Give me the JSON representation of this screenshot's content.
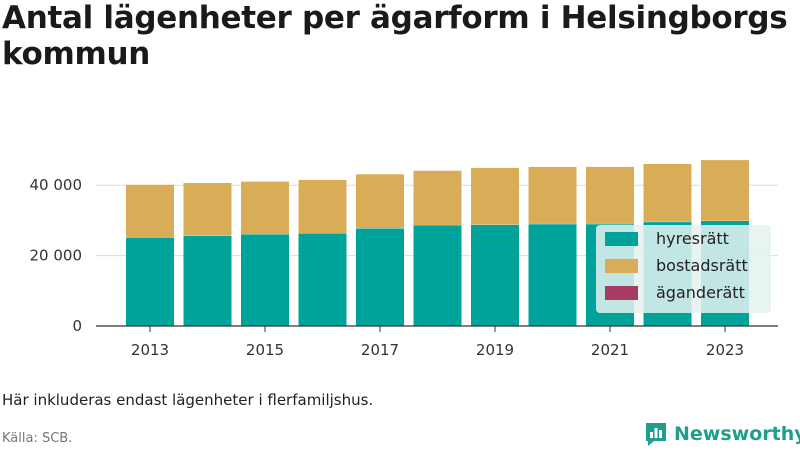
{
  "title": "Antal lägenheter per ägarform i Helsingborgs kommun",
  "note": "Här inkluderas endast lägenheter i flerfamiljshus.",
  "source": "Källa: SCB.",
  "brand": {
    "name": "Newsworthy",
    "icon": "newsworthy-logo-icon",
    "color": "#1f9e8c"
  },
  "chart_data": {
    "type": "bar",
    "stacked": true,
    "categories": [
      "2013",
      "2014",
      "2015",
      "2016",
      "2017",
      "2018",
      "2019",
      "2020",
      "2021",
      "2022",
      "2023"
    ],
    "x_tick_labels": [
      "2013",
      "2015",
      "2017",
      "2019",
      "2021",
      "2023"
    ],
    "y_ticks": [
      0,
      20000,
      40000
    ],
    "y_tick_labels": [
      "0",
      "20 000",
      "40 000"
    ],
    "ylim": [
      0,
      50000
    ],
    "grid": true,
    "legend_position": "bottom-right",
    "series": [
      {
        "name": "hyresrätt",
        "color": "#00a399",
        "values": [
          25200,
          25700,
          26100,
          26400,
          27800,
          28700,
          28800,
          29000,
          29000,
          29600,
          29900
        ]
      },
      {
        "name": "bostadsrätt",
        "color": "#d9ad58",
        "values": [
          15000,
          15000,
          15000,
          15200,
          15400,
          15500,
          16200,
          16300,
          16300,
          16500,
          17300
        ]
      },
      {
        "name": "äganderätt",
        "color": "#a83a64",
        "values": [
          0,
          0,
          0,
          0,
          0,
          0,
          0,
          0,
          0,
          0,
          0
        ]
      }
    ]
  }
}
